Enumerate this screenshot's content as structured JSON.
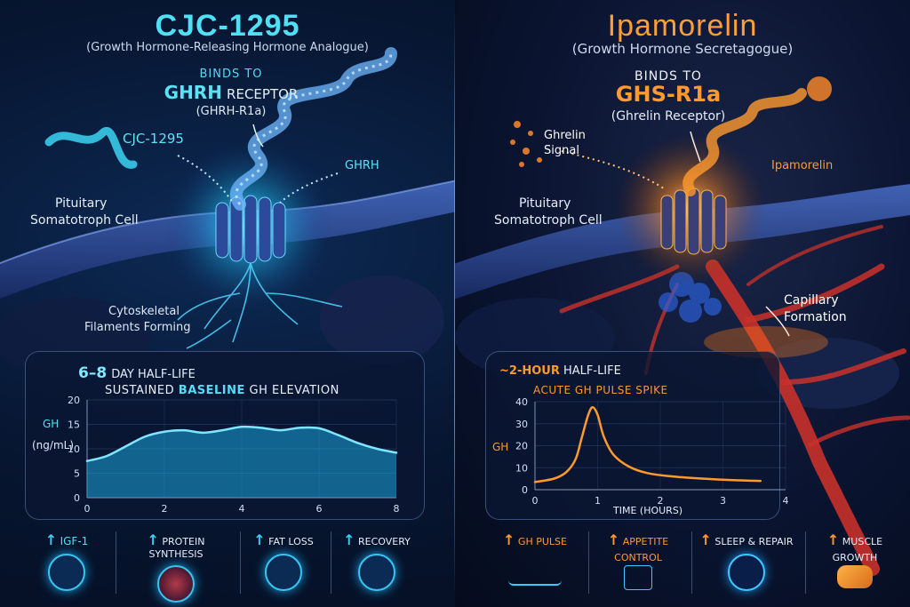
{
  "left": {
    "title": "CJC-1295",
    "subtitle": "(Growth Hormone-Releasing Hormone Analogue)",
    "binds_to": "BINDS TO",
    "receptor_main": "GHRH",
    "receptor_word": "RECEPTOR",
    "receptor_sub": "(GHRH-R1a)",
    "molecule_label": "CJC-1295",
    "ghrh_label": "GHRH",
    "cell_label_1": "Pituitary",
    "cell_label_2": "Somatotroph Cell",
    "cyto_label_1": "Cytoskeletal",
    "cyto_label_2": "Filaments Forming",
    "half_life_value": "6–8",
    "half_life_text": "DAY HALF-LIFE",
    "elevation_pre": "SUSTAINED",
    "elevation_mid": "BASELINE",
    "elevation_post": "GH ELEVATION",
    "chart_ylabel_1": "GH",
    "chart_ylabel_2": "(ng/mL)",
    "benefits": [
      {
        "arrow": "↑",
        "label": "IGF-1"
      },
      {
        "arrow": "↑",
        "label": "PROTEIN SYNTHESIS"
      },
      {
        "arrow": "↑",
        "label": "FAT LOSS"
      },
      {
        "arrow": "↑",
        "label": "RECOVERY"
      }
    ],
    "accent": "#39d0f0"
  },
  "right": {
    "title": "Ipamorelin",
    "subtitle": "(Growth Hormone Secretagogue)",
    "binds_to": "BINDS TO",
    "receptor_main": "GHS-R1a",
    "receptor_sub": "(Ghrelin Receptor)",
    "ghrelin_label_1": "Ghrelin",
    "ghrelin_label_2": "Signal",
    "molecule_label": "Ipamorelin",
    "cell_label_1": "Pituitary",
    "cell_label_2": "Somatotroph Cell",
    "capillary_label_1": "Capillary",
    "capillary_label_2": "Formation",
    "half_life_prefix": "~2-HOUR",
    "half_life_text": "HALF-LIFE",
    "pulse_text": "ACUTE GH PULSE SPIKE",
    "chart_ylabel": "GH",
    "chart_xlabel": "TIME (HOURS)",
    "benefits": [
      {
        "arrow": "↑",
        "label": "GH PULSE"
      },
      {
        "arrow": "↑",
        "label": "APPETITE",
        "label2": "CONTROL"
      },
      {
        "arrow": "↑",
        "label": "SLEEP & REPAIR"
      },
      {
        "arrow": "↑",
        "label": "MUSCLE",
        "label2": "GROWTH"
      }
    ],
    "accent": "#ff9a2e"
  },
  "chart_data": [
    {
      "type": "area",
      "x_ticks": [
        0,
        2,
        4,
        6,
        8
      ],
      "y_ticks": [
        0,
        5,
        10,
        15,
        20
      ],
      "xlim": [
        0,
        8
      ],
      "ylim": [
        0,
        20
      ],
      "x": [
        0,
        0.5,
        1,
        1.5,
        2,
        2.5,
        3,
        3.5,
        4,
        4.5,
        5,
        5.5,
        6,
        6.5,
        7,
        7.5,
        8
      ],
      "values": [
        7.5,
        8.5,
        10.5,
        12.5,
        13.5,
        13.8,
        13.3,
        13.8,
        14.5,
        14.3,
        13.8,
        14.3,
        14.2,
        12.8,
        11.2,
        10,
        9.2
      ]
    },
    {
      "type": "line",
      "x_ticks": [
        0,
        1,
        2,
        3,
        4
      ],
      "y_ticks": [
        0,
        10,
        20,
        30,
        40
      ],
      "xlim": [
        0,
        4
      ],
      "ylim": [
        0,
        40
      ],
      "x": [
        0,
        0.3,
        0.5,
        0.65,
        0.75,
        0.85,
        0.92,
        1.0,
        1.1,
        1.25,
        1.5,
        1.8,
        2.2,
        2.7,
        3.2,
        3.6
      ],
      "values": [
        3.5,
        5,
        8,
        14,
        24,
        34,
        37.5,
        34,
        24,
        16,
        10.5,
        7.5,
        6,
        5,
        4.3,
        4
      ]
    }
  ]
}
